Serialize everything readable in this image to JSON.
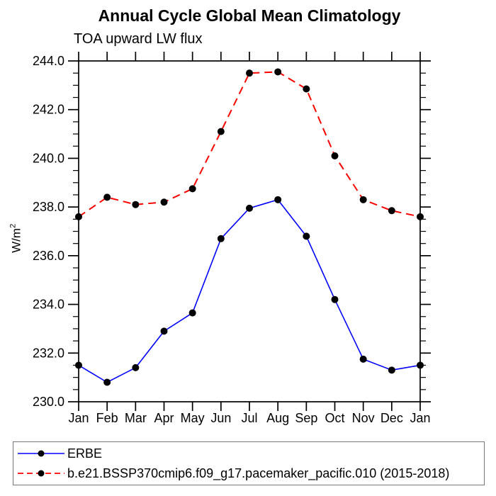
{
  "page": {
    "background": "#ffffff"
  },
  "chart_data": {
    "type": "line",
    "title": "Annual Cycle Global Mean Climatology",
    "subtitle": "TOA upward LW flux",
    "ylabel": "W/m",
    "ylabel_exp": "2",
    "categories": [
      "Jan",
      "Feb",
      "Mar",
      "Apr",
      "May",
      "Jun",
      "Jul",
      "Aug",
      "Sep",
      "Oct",
      "Nov",
      "Dec",
      "Jan"
    ],
    "ylim": [
      230.0,
      244.0
    ],
    "ytick_major": 2.0,
    "ytick_minor": 0.5,
    "ytick_label_format": "one_decimal",
    "grid": false,
    "legend_position": "bottom-box",
    "axis_color": "#000000",
    "marker": "filled-circle",
    "series": [
      {
        "name": "ERBE",
        "color": "#0000ff",
        "line_style": "solid",
        "marker_color": "#000000",
        "values": [
          231.5,
          230.8,
          231.4,
          232.9,
          233.65,
          236.7,
          237.95,
          238.3,
          236.8,
          234.2,
          231.75,
          231.3,
          231.5
        ]
      },
      {
        "name": "b.e21.BSSP370cmip6.f09_g17.pacemaker_pacific.010 (2015-2018)",
        "color": "#ff0000",
        "line_style": "dashed",
        "marker_color": "#000000",
        "values": [
          237.6,
          238.4,
          238.1,
          238.2,
          238.75,
          241.1,
          243.5,
          243.55,
          242.85,
          240.1,
          238.3,
          237.85,
          237.6
        ]
      }
    ]
  }
}
